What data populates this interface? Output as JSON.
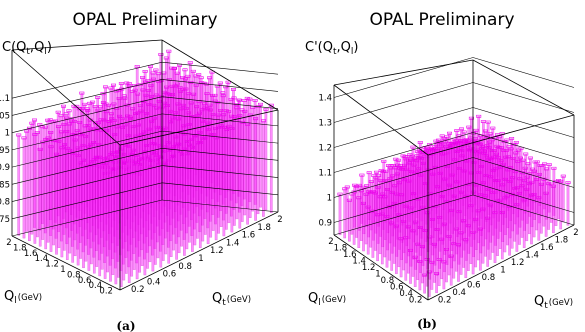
{
  "chart_data": [
    {
      "type": "lego",
      "panel": "(a)",
      "title": "OPAL Preliminary",
      "zlabel": {
        "main": "C",
        "args": [
          "Q",
          "t",
          ",",
          "Q",
          "l",
          ")"
        ]
      },
      "xlabel": {
        "main": "Q",
        "sub": "l",
        "unit": "(GeV)"
      },
      "ylabel": {
        "main": "Q",
        "sub": "t",
        "unit": "(GeV)"
      },
      "zlim": [
        0.7,
        1.15
      ],
      "z_ticks": [
        "0.75",
        "0.8",
        "0.85",
        "0.9",
        "0.95",
        "1",
        "1.05",
        "1.1"
      ],
      "xl_ticks": [
        "0.2",
        "0.4",
        "0.6",
        "0.8",
        "1",
        "1.2",
        "1.4",
        "1.6",
        "1.8",
        "2"
      ],
      "qt_ticks": [
        "0.2",
        "0.4",
        "0.6",
        "0.8",
        "1",
        "1.2",
        "1.4",
        "1.6",
        "1.8",
        "2"
      ],
      "color": "#ff33ff"
    },
    {
      "type": "lego",
      "panel": "(b)",
      "title": "OPAL Preliminary",
      "zlabel": {
        "main": "C'",
        "args": [
          "Q",
          "t",
          ",",
          "Q",
          "l",
          ")"
        ]
      },
      "xlabel": {
        "main": "Q",
        "sub": "l",
        "unit": "(GeV)"
      },
      "ylabel": {
        "main": "Q",
        "sub": "t",
        "unit": "(GeV)"
      },
      "zlim": [
        0.85,
        1.45
      ],
      "z_ticks": [
        "0.9",
        "1",
        "1.1",
        "1.2",
        "1.3",
        "1.4"
      ],
      "xl_ticks": [
        "0.2",
        "0.4",
        "0.6",
        "0.8",
        "1",
        "1.2",
        "1.4",
        "1.6",
        "1.8",
        "2"
      ],
      "qt_ticks": [
        "0.2",
        "0.4",
        "0.6",
        "0.8",
        "1",
        "1.2",
        "1.4",
        "1.6",
        "1.8",
        "2"
      ],
      "color": "#ff33ff"
    }
  ]
}
